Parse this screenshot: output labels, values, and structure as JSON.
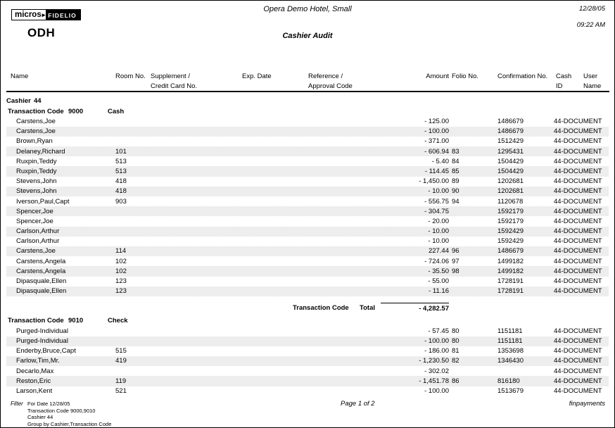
{
  "logo": {
    "micros": "micros",
    "arrow": "▸",
    "fidelio": "FIDELIO",
    "property_code": "ODH"
  },
  "header": {
    "hotel_name": "Opera Demo Hotel, Small",
    "report_title": "Cashier Audit",
    "date": "12/28/05",
    "time": "09:22 AM"
  },
  "columns": {
    "name": "Name",
    "room": "Room No.",
    "supplement1": "Supplement /",
    "supplement2": "Credit Card No.",
    "exp_date": "Exp. Date",
    "reference1": "Reference /",
    "reference2": "Approval Code",
    "amount": "Amount",
    "folio": "Folio No.",
    "confirmation": "Confirmation No.",
    "cash1": "Cash",
    "cash2": "ID",
    "user1": "User",
    "user2": "Name"
  },
  "cashier": {
    "label": "Cashier",
    "value": "44"
  },
  "sections": [
    {
      "code_label": "Transaction Code",
      "code": "9000",
      "name": "Cash",
      "rows": [
        {
          "name": "Carstens,Joe",
          "room": "",
          "amount": "- 125.00",
          "folio": "",
          "confirmation": "1486679",
          "user": "44-DOCUMENT"
        },
        {
          "name": "Carstens,Joe",
          "room": "",
          "amount": "- 100.00",
          "folio": "",
          "confirmation": "1486679",
          "user": "44-DOCUMENT"
        },
        {
          "name": "Brown,Ryan",
          "room": "",
          "amount": "- 371.00",
          "folio": "",
          "confirmation": "1512429",
          "user": "44-DOCUMENT"
        },
        {
          "name": "Delaney,Richard",
          "room": "101",
          "amount": "- 606.94",
          "folio": "83",
          "confirmation": "1295431",
          "user": "44-DOCUMENT"
        },
        {
          "name": "Ruxpin,Teddy",
          "room": "513",
          "amount": "- 5.40",
          "folio": "84",
          "confirmation": "1504429",
          "user": "44-DOCUMENT"
        },
        {
          "name": "Ruxpin,Teddy",
          "room": "513",
          "amount": "- 114.45",
          "folio": "85",
          "confirmation": "1504429",
          "user": "44-DOCUMENT"
        },
        {
          "name": "Stevens,John",
          "room": "418",
          "amount": "- 1,450.00",
          "folio": "89",
          "confirmation": "1202681",
          "user": "44-DOCUMENT"
        },
        {
          "name": "Stevens,John",
          "room": "418",
          "amount": "- 10.00",
          "folio": "90",
          "confirmation": "1202681",
          "user": "44-DOCUMENT"
        },
        {
          "name": "Iverson,Paul,Capt",
          "room": "903",
          "amount": "- 556.75",
          "folio": "94",
          "confirmation": "1120678",
          "user": "44-DOCUMENT"
        },
        {
          "name": "Spencer,Joe",
          "room": "",
          "amount": "- 304.75",
          "folio": "",
          "confirmation": "1592179",
          "user": "44-DOCUMENT"
        },
        {
          "name": "Spencer,Joe",
          "room": "",
          "amount": "- 20.00",
          "folio": "",
          "confirmation": "1592179",
          "user": "44-DOCUMENT"
        },
        {
          "name": "Carlson,Arthur",
          "room": "",
          "amount": "- 10.00",
          "folio": "",
          "confirmation": "1592429",
          "user": "44-DOCUMENT"
        },
        {
          "name": "Carlson,Arthur",
          "room": "",
          "amount": "- 10.00",
          "folio": "",
          "confirmation": "1592429",
          "user": "44-DOCUMENT"
        },
        {
          "name": "Carstens,Joe",
          "room": "114",
          "amount": "227.44",
          "folio": "96",
          "confirmation": "1486679",
          "user": "44-DOCUMENT"
        },
        {
          "name": "Carstens,Angela",
          "room": "102",
          "amount": "- 724.06",
          "folio": "97",
          "confirmation": "1499182",
          "user": "44-DOCUMENT"
        },
        {
          "name": "Carstens,Angela",
          "room": "102",
          "amount": "- 35.50",
          "folio": "98",
          "confirmation": "1499182",
          "user": "44-DOCUMENT"
        },
        {
          "name": "Dipasquale,Ellen",
          "room": "123",
          "amount": "- 55.00",
          "folio": "",
          "confirmation": "1728191",
          "user": "44-DOCUMENT"
        },
        {
          "name": "Dipasquale,Ellen",
          "room": "123",
          "amount": "- 11.16",
          "folio": "",
          "confirmation": "1728191",
          "user": "44-DOCUMENT"
        }
      ],
      "total": {
        "label1": "Transaction Code",
        "label2": "Total",
        "amount": "- 4,282.57"
      }
    },
    {
      "code_label": "Transaction Code",
      "code": "9010",
      "name": "Check",
      "rows": [
        {
          "name": "Purged-Individual",
          "room": "",
          "amount": "- 57.45",
          "folio": "80",
          "confirmation": "1151181",
          "user": "44-DOCUMENT"
        },
        {
          "name": "Purged-Individual",
          "room": "",
          "amount": "- 100.00",
          "folio": "80",
          "confirmation": "1151181",
          "user": "44-DOCUMENT"
        },
        {
          "name": "Enderby,Bruce,Capt",
          "room": "515",
          "amount": "- 186.00",
          "folio": "81",
          "confirmation": "1353698",
          "user": "44-DOCUMENT"
        },
        {
          "name": "Farlow,Tim,Mr.",
          "room": "419",
          "amount": "- 1,230.50",
          "folio": "82",
          "confirmation": "1346430",
          "user": "44-DOCUMENT"
        },
        {
          "name": "Decarlo,Max",
          "room": "",
          "amount": "- 302.02",
          "folio": "",
          "confirmation": "",
          "user": "44-DOCUMENT"
        },
        {
          "name": "Reston,Eric",
          "room": "119",
          "amount": "- 1,451.78",
          "folio": "86",
          "confirmation": "816180",
          "user": "44-DOCUMENT"
        },
        {
          "name": "Larson,Kent",
          "room": "521",
          "amount": "- 100.00",
          "folio": "",
          "confirmation": "1513679",
          "user": "44-DOCUMENT"
        }
      ]
    }
  ],
  "footer": {
    "filter_label": "Filter",
    "filter_lines": [
      "For Date 12/28/05",
      "Transaction Code 9000,9010",
      "Cashier 44",
      "Group by Cashier,Transaction Code"
    ],
    "page_number": "Page 1  of 2",
    "report_name": "finpayments"
  }
}
